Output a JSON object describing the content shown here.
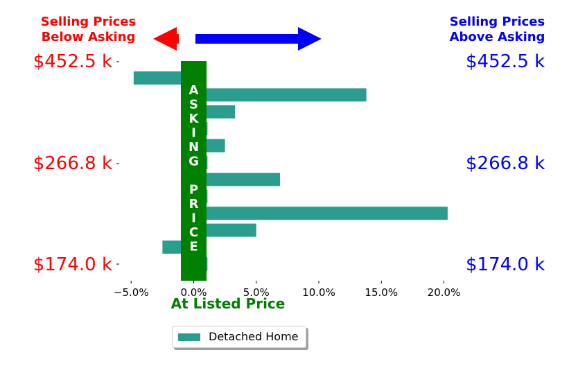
{
  "header": {
    "left": [
      "Selling Prices",
      "Below Asking"
    ],
    "right": [
      "Selling Prices",
      "Above Asking"
    ]
  },
  "y_labels": [
    "$452.5 k",
    "$266.8 k",
    "$174.0 k"
  ],
  "band_text": [
    "A",
    "S",
    "K",
    "I",
    "N",
    "G",
    "",
    "P",
    "R",
    "I",
    "C",
    "E"
  ],
  "colors": {
    "bar": "#2a9d8f",
    "band": "#008000",
    "left_text": "#ff0000",
    "right_text": "#0000ff",
    "xlabel": "#008000",
    "left_arrow": "#ff0000",
    "right_arrow": "#0000ff"
  },
  "chart_data": {
    "type": "bar",
    "orientation": "horizontal",
    "series": [
      {
        "name": "Detached Home",
        "values": [
          -4.8,
          13.8,
          3.3,
          1.1,
          2.5,
          1.1,
          6.9,
          1.1,
          20.3,
          5.0,
          -2.5,
          1.1
        ]
      }
    ],
    "x_ticks": [
      "−5.0%",
      "0.0%",
      "5.0%",
      "10.0%",
      "15.0%",
      "20.0%"
    ],
    "x_tick_values": [
      -5,
      0,
      5,
      10,
      15,
      20
    ],
    "xlim": [
      -6,
      21.5
    ],
    "xlabel": "At Listed Price",
    "legend": [
      "Detached Home"
    ],
    "legend_position": "bottom"
  }
}
